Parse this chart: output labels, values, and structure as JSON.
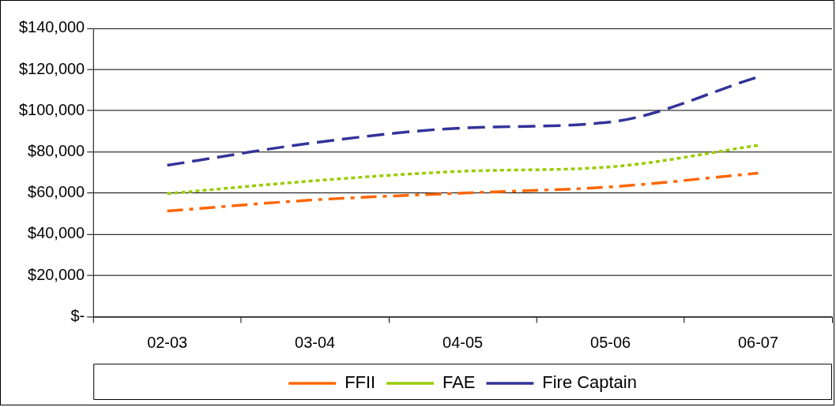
{
  "chart_data": {
    "type": "line",
    "categories": [
      "02-03",
      "03-04",
      "04-05",
      "05-06",
      "06-07"
    ],
    "series": [
      {
        "name": "FFII",
        "color": "#ff6600",
        "line_style": "dashdot",
        "values": [
          51300,
          56700,
          60000,
          63000,
          69700
        ]
      },
      {
        "name": "FAE",
        "color": "#99cc00",
        "line_style": "dotted",
        "values": [
          59700,
          66000,
          70600,
          72700,
          83200
        ]
      },
      {
        "name": "Fire Captain",
        "color": "#333399",
        "line_style": "dashed",
        "values": [
          73500,
          84500,
          91600,
          94500,
          116400
        ]
      }
    ],
    "ylim": [
      0,
      140000
    ],
    "yticks": [
      {
        "value": 0,
        "label": "$-"
      },
      {
        "value": 20000,
        "label": "$20,000"
      },
      {
        "value": 40000,
        "label": "$40,000"
      },
      {
        "value": 60000,
        "label": "$60,000"
      },
      {
        "value": 80000,
        "label": "$80,000"
      },
      {
        "value": 100000,
        "label": "$100,000"
      },
      {
        "value": 120000,
        "label": "$120,000"
      },
      {
        "value": 140000,
        "label": "$140,000"
      }
    ],
    "grid": "y",
    "legend": "bottom",
    "marker": "none"
  }
}
